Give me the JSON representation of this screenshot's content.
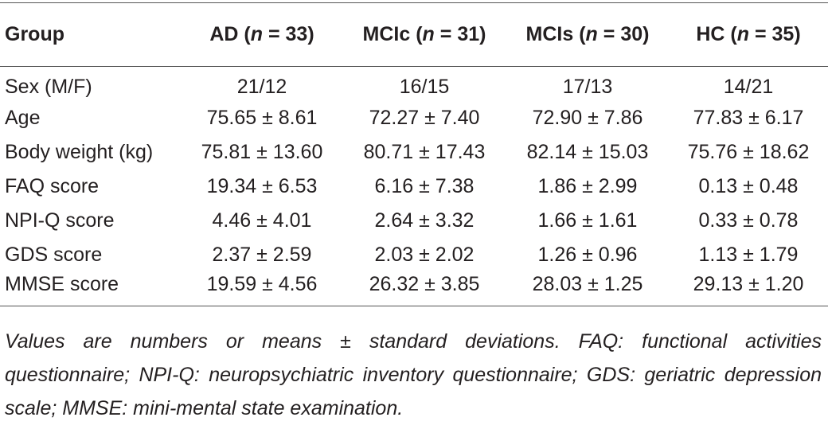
{
  "table": {
    "header": [
      {
        "text": "Group"
      },
      {
        "prefix": "AD (",
        "var": "n",
        "suffix": " = 33)"
      },
      {
        "prefix": "MCIc (",
        "var": "n",
        "suffix": " = 31)"
      },
      {
        "prefix": "MCIs (",
        "var": "n",
        "suffix": " = 30)"
      },
      {
        "prefix": "HC (",
        "var": "n",
        "suffix": " = 35)"
      }
    ],
    "rows": [
      [
        "Sex (M/F)",
        "21/12",
        "16/15",
        "17/13",
        "14/21"
      ],
      [
        "Age",
        "75.65 ± 8.61",
        "72.27 ± 7.40",
        "72.90 ± 7.86",
        "77.83 ± 6.17"
      ],
      [
        "Body weight (kg)",
        "75.81 ± 13.60",
        "80.71 ± 17.43",
        "82.14 ± 15.03",
        "75.76 ± 18.62"
      ],
      [
        "FAQ score",
        "19.34 ± 6.53",
        "6.16 ± 7.38",
        "1.86 ± 2.99",
        "0.13 ± 0.48"
      ],
      [
        "NPI-Q score",
        "4.46 ± 4.01",
        "2.64 ± 3.32",
        "1.66 ± 1.61",
        "0.33 ± 0.78"
      ],
      [
        "GDS score",
        "2.37 ± 2.59",
        "2.03 ± 2.02",
        "1.26 ± 0.96",
        "1.13 ± 1.79"
      ],
      [
        "MMSE score",
        "19.59 ± 4.56",
        "26.32 ± 3.85",
        "28.03 ± 1.25",
        "29.13 ± 1.20"
      ]
    ],
    "footnote": "Values are numbers or means ± standard deviations. FAQ: functional activities questionnaire; NPI-Q: neuropsychiatric inventory questionnaire; GDS: geriatric depression scale; MMSE: mini-mental state examination."
  }
}
